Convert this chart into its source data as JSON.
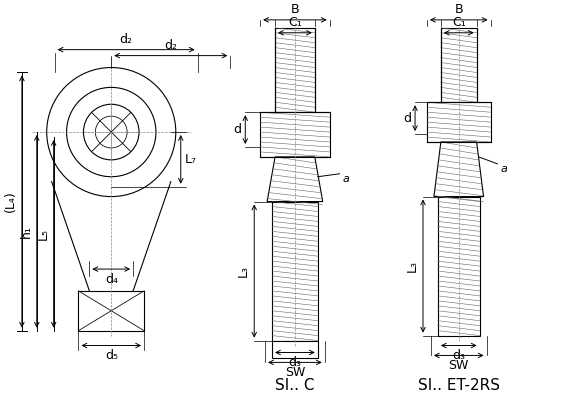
{
  "bg_color": "#ffffff",
  "line_color": "#000000",
  "hatch_color": "#555555",
  "title_left": "SI.. C",
  "title_right": "SI.. ET-2RS",
  "labels": {
    "d2": "d₂",
    "d4": "d₄",
    "d5": "d₅",
    "L4": "(L₄)",
    "h1": "h₁",
    "L5": "L₅",
    "L7": "L₇",
    "B": "B",
    "C1": "C₁",
    "d": "d",
    "a": "a",
    "L3": "L₃",
    "d3": "d₃",
    "SW": "SW"
  },
  "font_size": 9,
  "title_font_size": 11
}
